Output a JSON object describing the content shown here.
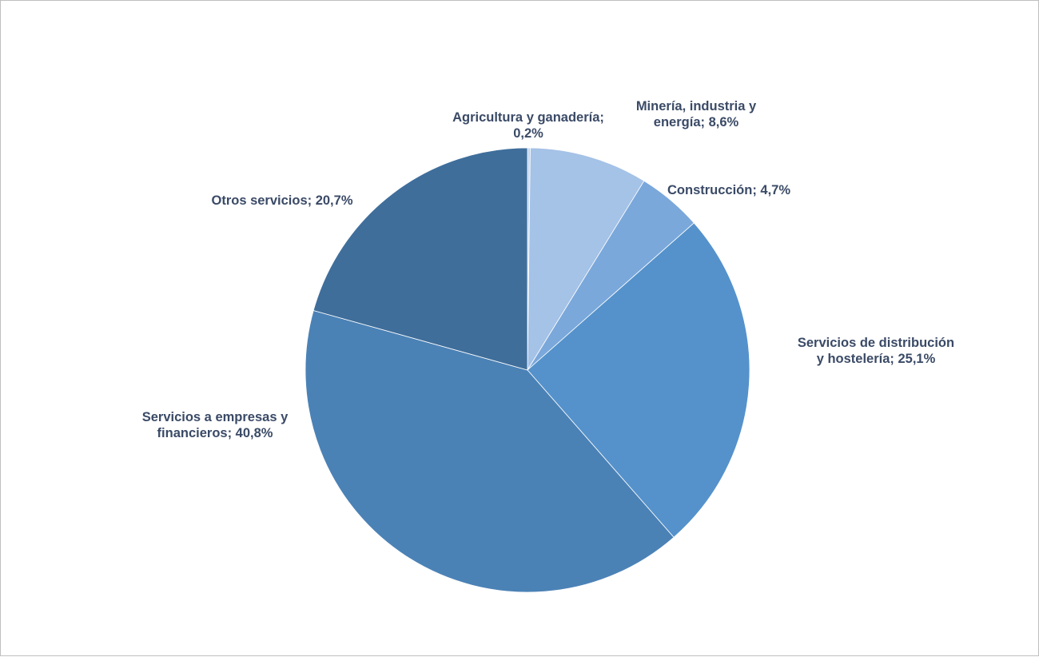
{
  "chart_data": {
    "type": "pie",
    "title": "",
    "categories": [
      "Agricultura y ganadería",
      "Minería, industria y energía",
      "Construcción",
      "Servicios de distribución y hostelería",
      "Servicios a empresas y financieros",
      "Otros servicios"
    ],
    "values": [
      0.2,
      8.6,
      4.7,
      25.1,
      40.8,
      20.7
    ],
    "unit": "%",
    "colors": [
      "#c3d6ee",
      "#a5c2e7",
      "#7aa8db",
      "#5592cb",
      "#4b82b6",
      "#3f6e9b"
    ],
    "data_labels": [
      "Agricultura y ganadería;\n0,2%",
      "Minería, industria y\nenergía; 8,6%",
      "Construcción; 4,7%",
      "Servicios de distribución\ny hostelería; 25,1%",
      "Servicios a empresas y\nfinancieros; 40,8%",
      "Otros servicios; 20,7%"
    ],
    "legend": "none"
  }
}
